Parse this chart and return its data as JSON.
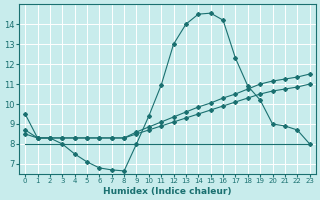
{
  "xlabel": "Humidex (Indice chaleur)",
  "x_ticks": [
    0,
    1,
    2,
    3,
    4,
    5,
    6,
    7,
    8,
    9,
    10,
    11,
    12,
    13,
    14,
    15,
    16,
    17,
    18,
    19,
    20,
    21,
    22,
    23
  ],
  "y_ticks": [
    7,
    8,
    9,
    10,
    11,
    12,
    13,
    14
  ],
  "ylim": [
    6.5,
    15.0
  ],
  "xlim": [
    -0.5,
    23.5
  ],
  "bg_color": "#c8ecec",
  "grid_color": "#ffffff",
  "line_color": "#1a7070",
  "series1_x": [
    0,
    1,
    2,
    3,
    4,
    5,
    6,
    7,
    8,
    9,
    10,
    11,
    12,
    13,
    14,
    15,
    16,
    17,
    18,
    19,
    20,
    21,
    22,
    23
  ],
  "series1_y": [
    9.5,
    8.3,
    8.3,
    8.0,
    7.5,
    7.1,
    6.8,
    6.7,
    6.65,
    8.0,
    9.4,
    10.95,
    13.0,
    14.0,
    14.5,
    14.55,
    14.2,
    12.3,
    10.9,
    10.2,
    9.0,
    8.9,
    8.7,
    8.0
  ],
  "series2_x": [
    0,
    1,
    2,
    3,
    4,
    5,
    6,
    7,
    8,
    9,
    10,
    11,
    12,
    13,
    14,
    15,
    16,
    17,
    18,
    19,
    20,
    21,
    22,
    23
  ],
  "series2_y": [
    8.7,
    8.3,
    8.3,
    8.3,
    8.3,
    8.3,
    8.3,
    8.3,
    8.3,
    8.6,
    8.85,
    9.1,
    9.35,
    9.6,
    9.85,
    10.05,
    10.3,
    10.5,
    10.75,
    11.0,
    11.15,
    11.25,
    11.35,
    11.5
  ],
  "series3_x": [
    0,
    1,
    2,
    3,
    4,
    5,
    6,
    7,
    8,
    9,
    10,
    11,
    12,
    13,
    14,
    15,
    16,
    17,
    18,
    19,
    20,
    21,
    22,
    23
  ],
  "series3_y": [
    8.5,
    8.3,
    8.3,
    8.3,
    8.3,
    8.3,
    8.3,
    8.3,
    8.3,
    8.5,
    8.7,
    8.9,
    9.1,
    9.3,
    9.5,
    9.7,
    9.9,
    10.1,
    10.3,
    10.5,
    10.65,
    10.75,
    10.85,
    11.0
  ],
  "series4_x": [
    0,
    23
  ],
  "series4_y": [
    8.0,
    8.0
  ]
}
